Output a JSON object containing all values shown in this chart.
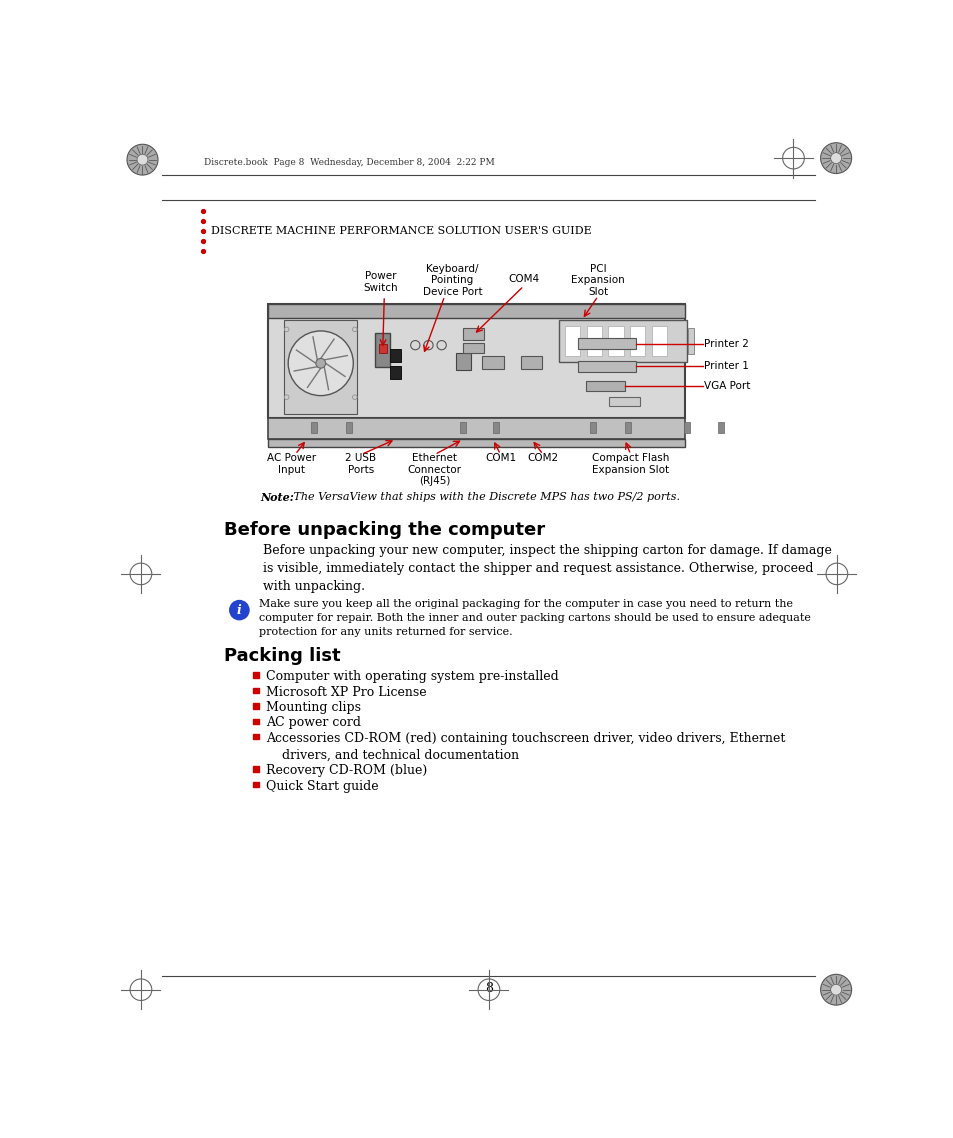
{
  "page_header": "Discrete.book  Page 8  Wednesday, December 8, 2004  2:22 PM",
  "bullet_text": "DISCRETE MACHINE PERFORMANCE SOLUTION USER'S GUIDE",
  "section1_title": "Before unpacking the computer",
  "section1_body": "Before unpacking your new computer, inspect the shipping carton for damage. If damage\nis visible, immediately contact the shipper and request assistance. Otherwise, proceed\nwith unpacking.",
  "info_box_text": "Make sure you keep all the original packaging for the computer in case you need to return the\ncomputer for repair. Both the inner and outer packing cartons should be used to ensure adequate\nprotection for any units returned for service.",
  "section2_title": "Packing list",
  "packing_items": [
    "Computer with operating system pre-installed",
    "Microsoft XP Pro License",
    "Mounting clips",
    "AC power cord",
    "Accessories CD-ROM (red) containing touchscreen driver, video drivers, Ethernet\n    drivers, and technical documentation",
    "Recovery CD-ROM (blue)",
    "Quick Start guide"
  ],
  "note_text_bold": "Note:",
  "note_text_italic": " The VersaView that ships with the Discrete MPS has two PS/2 ports.",
  "bg_color": "#ffffff",
  "text_color": "#000000",
  "red_color": "#cc0000",
  "page_number": "8",
  "header_line_color": "#555555"
}
